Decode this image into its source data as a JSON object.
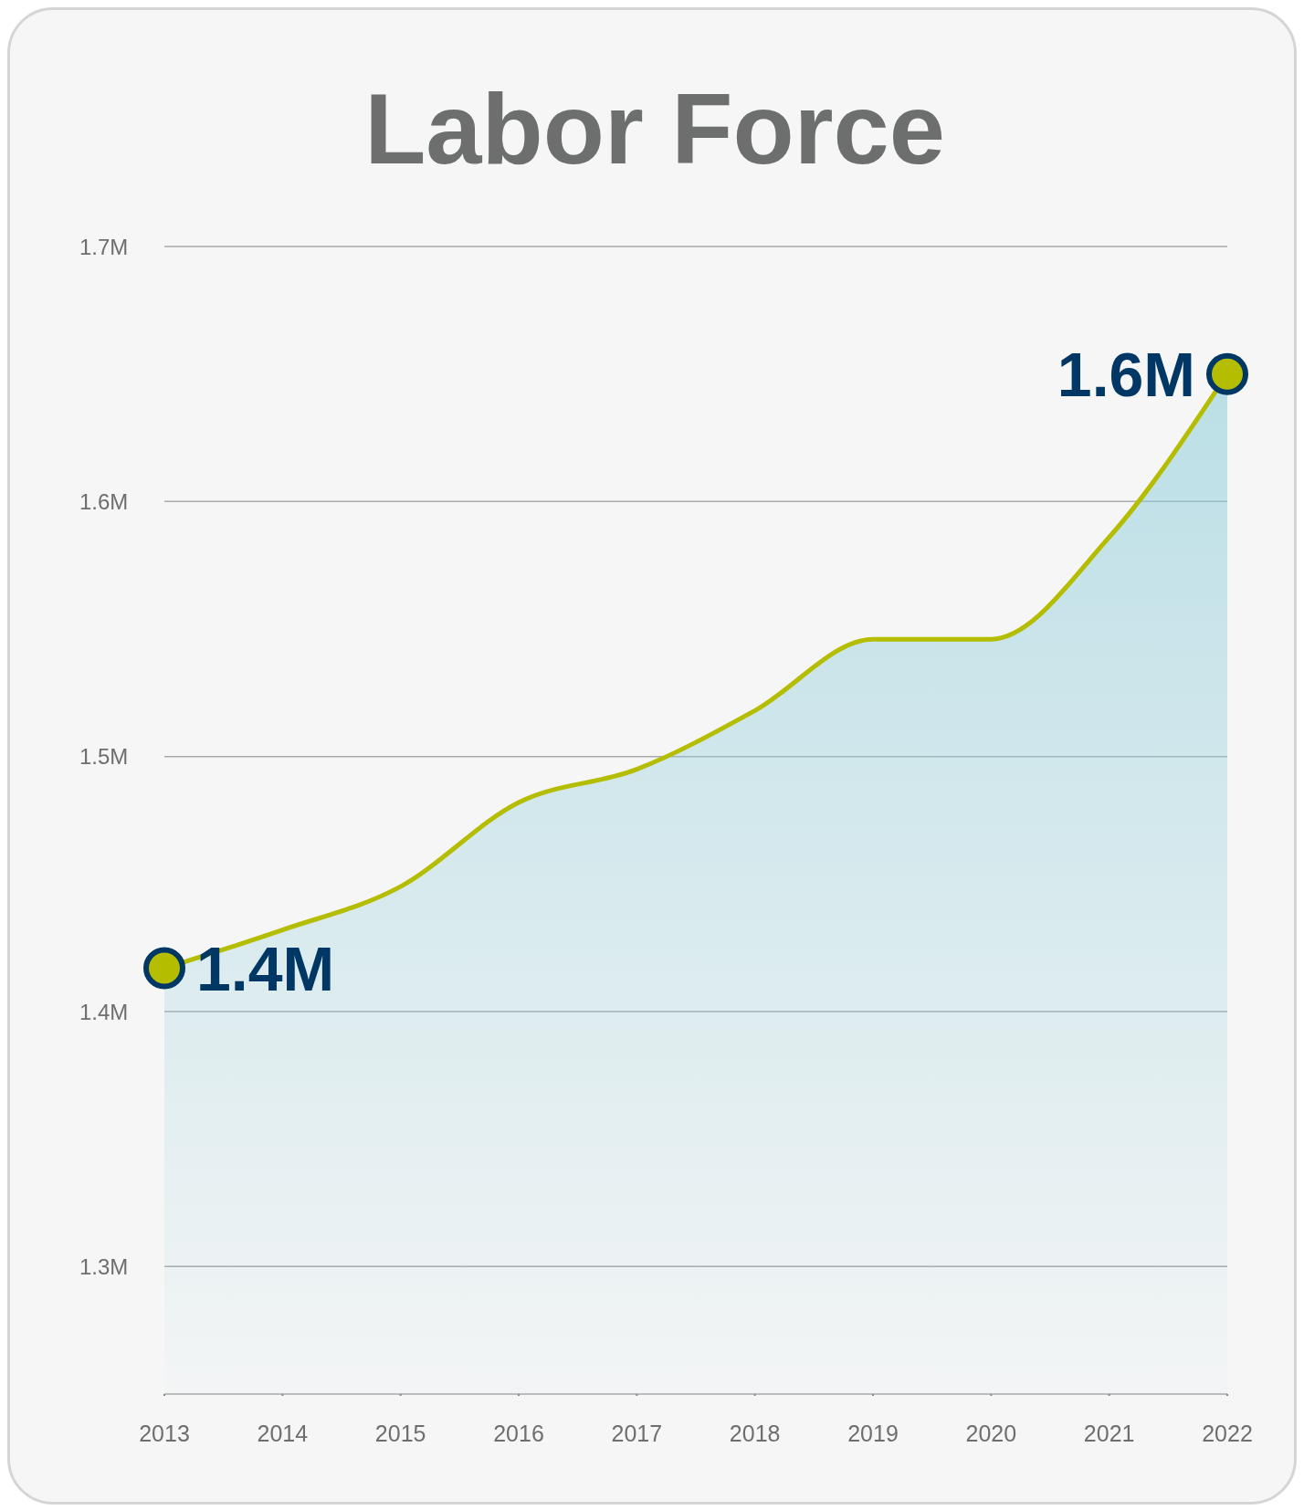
{
  "chart_data": {
    "type": "area",
    "title": "Labor Force",
    "categories": [
      "2013",
      "2014",
      "2015",
      "2016",
      "2017",
      "2018",
      "2019",
      "2020",
      "2021",
      "2022"
    ],
    "series": [
      {
        "color": "#b5bd00",
        "values": [
          1.417,
          1.432,
          1.449,
          1.482,
          1.495,
          1.518,
          1.546,
          1.546,
          1.586,
          1.65
        ],
        "value_labels": [
          "1.4M",
          null,
          null,
          null,
          null,
          null,
          null,
          null,
          null,
          "1.6M"
        ]
      }
    ],
    "ylim": [
      1.25,
      1.7
    ],
    "yticks": [
      {
        "value": 1.3,
        "label": "1.3M"
      },
      {
        "value": 1.4,
        "label": "1.4M"
      },
      {
        "value": 1.5,
        "label": "1.5M"
      },
      {
        "value": 1.6,
        "label": "1.6M"
      },
      {
        "value": 1.7,
        "label": "1.7M"
      }
    ],
    "grid": "y"
  }
}
